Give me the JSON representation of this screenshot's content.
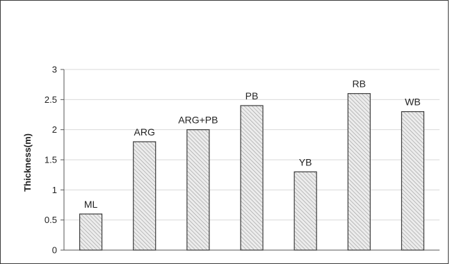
{
  "chart_data": {
    "type": "bar",
    "categories": [
      "ML",
      "ARG",
      "ARG+PB",
      "PB",
      "YB",
      "RB",
      "WB"
    ],
    "values": [
      0.6,
      1.8,
      2.0,
      2.4,
      1.3,
      2.6,
      2.3
    ],
    "ylabel": "Thickness(m)",
    "xlabel": "",
    "ylim": [
      0,
      3
    ],
    "yticks": [
      "0",
      "0.5",
      "1",
      "1.5",
      "2",
      "2.5",
      "3"
    ],
    "grid": true,
    "bar_fill": "hatched",
    "bar_color": "#d8d8d8",
    "border_color": "#3a3a3a"
  }
}
